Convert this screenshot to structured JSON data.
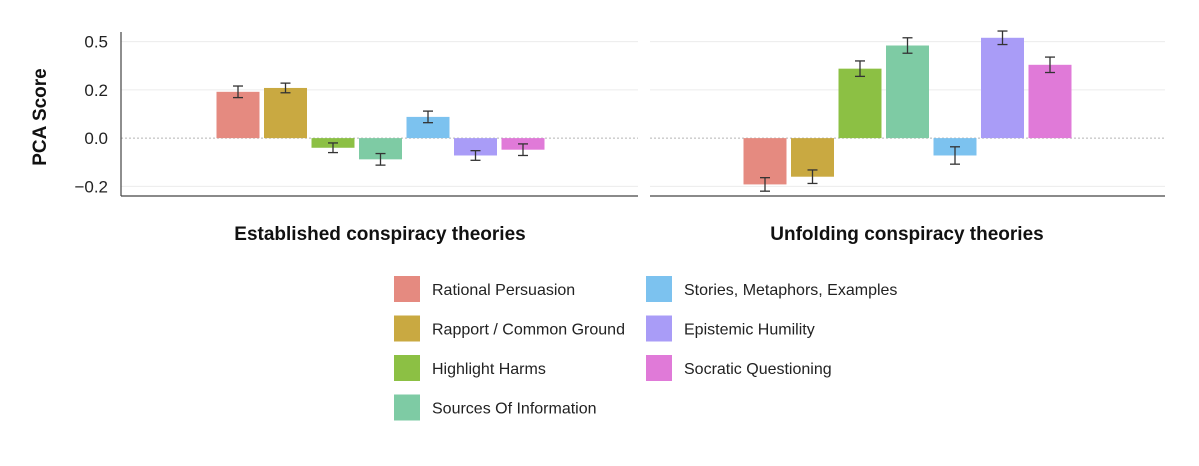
{
  "chart_data": {
    "type": "bar",
    "ylabel": "PCA Score",
    "ylim": [
      -0.3,
      0.55
    ],
    "y_ticks": [
      {
        "value": 0.5,
        "label": "0.5"
      },
      {
        "value": 0.25,
        "label": "0.2"
      },
      {
        "value": 0.0,
        "label": "0.0"
      },
      {
        "value": -0.25,
        "label": "−0.2"
      }
    ],
    "zero_line": "dotted",
    "categories": [
      {
        "name": "Rational Persuasion",
        "color": "#E58A80"
      },
      {
        "name": "Rapport / Common Ground",
        "color": "#C9A941"
      },
      {
        "name": "Highlight Harms",
        "color": "#8CC044"
      },
      {
        "name": "Sources Of Information",
        "color": "#7ECBA4"
      },
      {
        "name": "Stories, Metaphors, Examples",
        "color": "#7CC2EF"
      },
      {
        "name": "Epistemic Humility",
        "color": "#A99CF7"
      },
      {
        "name": "Socratic Questioning",
        "color": "#E07AD8"
      }
    ],
    "panels": [
      {
        "title": "Established conspiracy theories",
        "values": [
          0.24,
          0.26,
          -0.05,
          -0.11,
          0.11,
          -0.09,
          -0.06
        ],
        "errors": [
          0.03,
          0.025,
          0.025,
          0.03,
          0.03,
          0.025,
          0.03
        ]
      },
      {
        "title": "Unfolding conspiracy theories",
        "values": [
          -0.24,
          -0.2,
          0.36,
          0.48,
          -0.09,
          0.52,
          0.38
        ],
        "errors": [
          0.035,
          0.035,
          0.04,
          0.04,
          0.045,
          0.035,
          0.04
        ]
      }
    ],
    "legend_position": "bottom-center"
  }
}
